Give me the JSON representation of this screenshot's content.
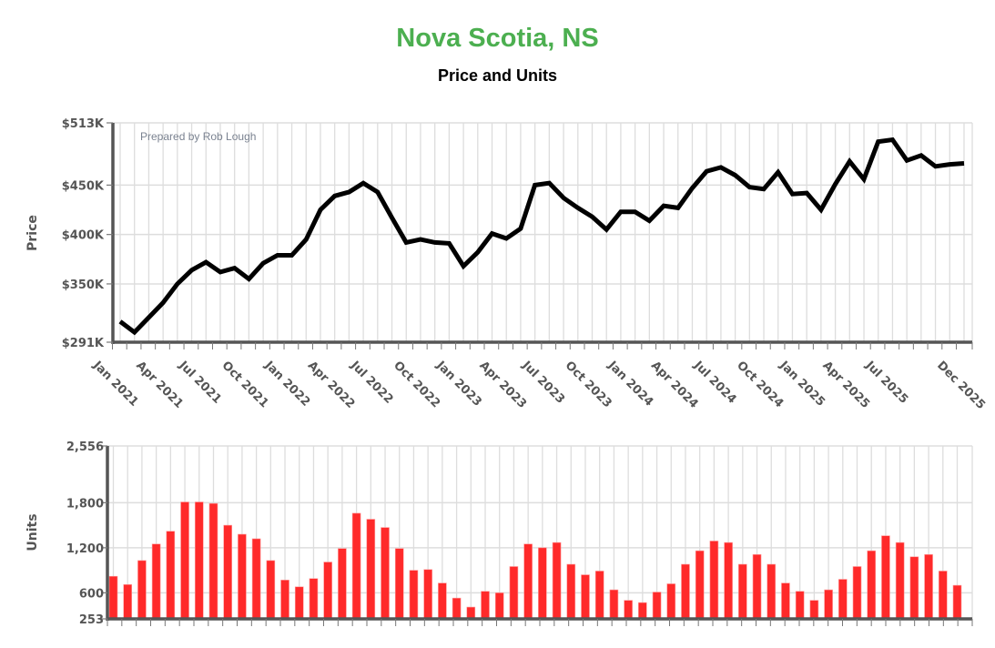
{
  "title": "Nova Scotia, NS",
  "subtitle": "Price and Units",
  "credit": "Prepared by Rob Lough",
  "colors": {
    "title": "#4caf50",
    "price_line": "#000000",
    "units_bars": "#ff2a2a",
    "grid": "#dddddd",
    "axis": "#555555"
  },
  "chart_data": [
    {
      "type": "line",
      "ylabel": "Price",
      "ylim": [
        291000,
        513000
      ],
      "y_ticks": [
        {
          "value": 291000,
          "label": "$291K"
        },
        {
          "value": 350000,
          "label": "$350K"
        },
        {
          "value": 400000,
          "label": "$400K"
        },
        {
          "value": 450000,
          "label": "$450K"
        },
        {
          "value": 513000,
          "label": "$513K"
        }
      ],
      "x_tick_labels": [
        {
          "index": 0,
          "label": "Jan 2021"
        },
        {
          "index": 3,
          "label": "Apr 2021"
        },
        {
          "index": 6,
          "label": "Jul 2021"
        },
        {
          "index": 9,
          "label": "Oct 2021"
        },
        {
          "index": 12,
          "label": "Jan 2022"
        },
        {
          "index": 15,
          "label": "Apr 2022"
        },
        {
          "index": 18,
          "label": "Jul 2022"
        },
        {
          "index": 21,
          "label": "Oct 2022"
        },
        {
          "index": 24,
          "label": "Jan 2023"
        },
        {
          "index": 27,
          "label": "Apr 2023"
        },
        {
          "index": 30,
          "label": "Jul 2023"
        },
        {
          "index": 33,
          "label": "Oct 2023"
        },
        {
          "index": 36,
          "label": "Jan 2024"
        },
        {
          "index": 39,
          "label": "Apr 2024"
        },
        {
          "index": 42,
          "label": "Jul 2024"
        },
        {
          "index": 45,
          "label": "Oct 2024"
        },
        {
          "index": 48,
          "label": "Jan 2025"
        },
        {
          "index": 51,
          "label": "Apr 2025"
        },
        {
          "index": 54,
          "label": "Jul 2025"
        },
        {
          "index": 59,
          "label": "Dec 2025"
        }
      ],
      "x_range": [
        "Jan 2021",
        "Dec 2025"
      ],
      "grid": true,
      "values": [
        312000,
        301000,
        316000,
        331000,
        350000,
        364000,
        372000,
        362000,
        366000,
        355000,
        371000,
        379000,
        379000,
        395000,
        425000,
        439000,
        443000,
        452000,
        443000,
        417000,
        392000,
        395000,
        392000,
        391000,
        368000,
        382000,
        401000,
        396000,
        406000,
        450000,
        452000,
        437000,
        427000,
        418000,
        405000,
        423000,
        423000,
        414000,
        429000,
        427000,
        447000,
        464000,
        468000,
        460000,
        448000,
        446000,
        463000,
        441000,
        442000,
        425000,
        451000,
        474000,
        456000,
        494000,
        496000,
        475000,
        480000,
        469000,
        471000,
        472000
      ]
    },
    {
      "type": "bar",
      "ylabel": "Units",
      "ylim": [
        253,
        2556
      ],
      "y_ticks": [
        {
          "value": 253,
          "label": "253"
        },
        {
          "value": 600,
          "label": "600"
        },
        {
          "value": 1200,
          "label": "1,200"
        },
        {
          "value": 1800,
          "label": "1,800"
        },
        {
          "value": 2556,
          "label": "2,556"
        }
      ],
      "x_range": [
        "Jan 2021",
        "Dec 2025"
      ],
      "grid": true,
      "values": [
        820,
        710,
        1030,
        1250,
        1420,
        1810,
        1810,
        1790,
        1500,
        1380,
        1320,
        1030,
        770,
        680,
        790,
        1010,
        1190,
        1660,
        1580,
        1470,
        1190,
        900,
        910,
        730,
        530,
        410,
        620,
        600,
        950,
        1250,
        1200,
        1270,
        980,
        840,
        890,
        640,
        500,
        470,
        610,
        720,
        980,
        1160,
        1290,
        1270,
        980,
        1110,
        980,
        730,
        620,
        500,
        640,
        780,
        950,
        1160,
        1360,
        1270,
        1080,
        1110,
        890,
        700
      ]
    }
  ]
}
